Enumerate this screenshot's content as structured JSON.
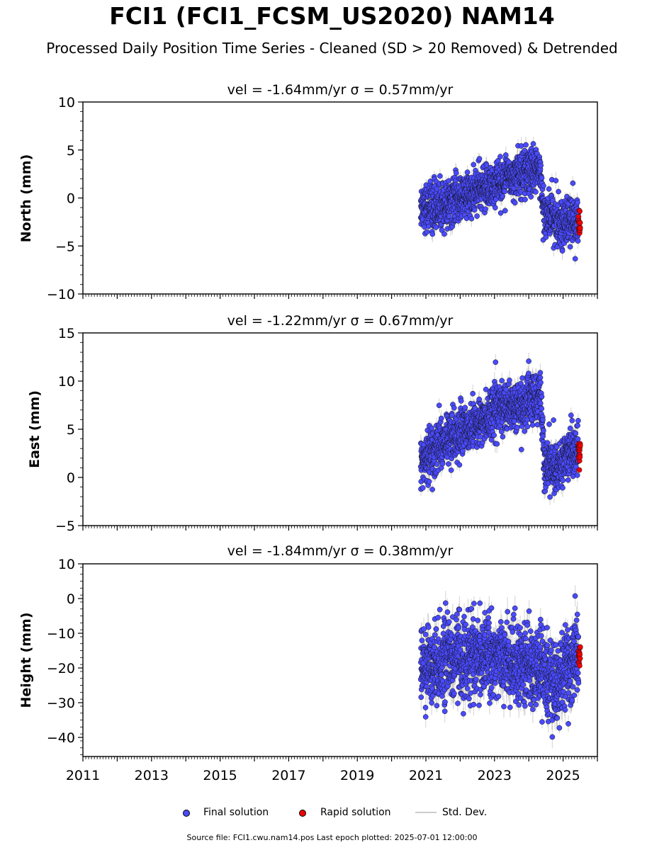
{
  "title": "FCI1 (FCI1_FCSM_US2020) NAM14",
  "subtitle": "Processed Daily Position Time Series - Cleaned (SD > 20 Removed) & Detrended",
  "legend": {
    "final": "Final solution",
    "rapid": "Rapid solution",
    "std": "Std. Dev."
  },
  "footer": "Source file: FCI1.cwu.nam14.pos  Last epoch plotted: 2025-07-01 12:00:00",
  "colors": {
    "final": "#4a4aff",
    "rapid": "#ee0000",
    "std": "#aaaaaa"
  },
  "chart_data": [
    {
      "type": "scatter",
      "title": "vel = -1.64mm/yr   σ = 0.57mm/yr",
      "ylabel": "North (mm)",
      "xlim": [
        2011,
        2026
      ],
      "ylim": [
        -10,
        10
      ],
      "yticks": [
        "−10",
        "−5",
        "0",
        "5",
        "10"
      ],
      "ytick_values": [
        -10,
        -5,
        0,
        5,
        10
      ],
      "xticks": [
        "2011",
        "2013",
        "2015",
        "2017",
        "2019",
        "2021",
        "2023",
        "2025"
      ],
      "series": [
        {
          "name": "Final solution",
          "trend": [
            [
              2020.85,
              -0.8
            ],
            [
              2021.5,
              -0.9
            ],
            [
              2022.0,
              -0.1
            ],
            [
              2022.6,
              0.8
            ],
            [
              2023.2,
              1.8
            ],
            [
              2023.7,
              2.6
            ],
            [
              2024.0,
              3.0
            ],
            [
              2024.35,
              2.4
            ],
            [
              2024.45,
              -1.6
            ],
            [
              2024.9,
              -2.4
            ],
            [
              2025.45,
              -2.6
            ]
          ],
          "spread": 1.2,
          "x_range": [
            2020.85,
            2025.45
          ]
        },
        {
          "name": "Rapid solution",
          "trend": [
            [
              2025.45,
              -2.5
            ],
            [
              2025.5,
              -2.4
            ]
          ],
          "spread": 0.9,
          "x_range": [
            2025.45,
            2025.5
          ]
        }
      ]
    },
    {
      "type": "scatter",
      "title": "vel = -1.22mm/yr   σ = 0.67mm/yr",
      "ylabel": "East (mm)",
      "xlim": [
        2011,
        2026
      ],
      "ylim": [
        -5,
        15
      ],
      "yticks": [
        "−5",
        "0",
        "5",
        "10",
        "15"
      ],
      "ytick_values": [
        -5,
        0,
        5,
        10,
        15
      ],
      "xticks": [
        "2011",
        "2013",
        "2015",
        "2017",
        "2019",
        "2021",
        "2023",
        "2025"
      ],
      "series": [
        {
          "name": "Final solution",
          "trend": [
            [
              2020.85,
              1.0
            ],
            [
              2021.3,
              3.2
            ],
            [
              2022.0,
              4.8
            ],
            [
              2022.7,
              6.0
            ],
            [
              2023.2,
              7.5
            ],
            [
              2023.8,
              7.3
            ],
            [
              2024.35,
              8.6
            ],
            [
              2024.45,
              1.8
            ],
            [
              2024.8,
              0.8
            ],
            [
              2025.1,
              2.6
            ],
            [
              2025.45,
              3.2
            ]
          ],
          "spread": 1.3,
          "x_range": [
            2020.85,
            2025.45
          ]
        },
        {
          "name": "Rapid solution",
          "trend": [
            [
              2025.45,
              2.6
            ],
            [
              2025.5,
              2.6
            ]
          ],
          "spread": 0.9,
          "x_range": [
            2025.45,
            2025.5
          ]
        }
      ]
    },
    {
      "type": "scatter",
      "title": "vel = -1.84mm/yr   σ = 0.38mm/yr",
      "ylabel": "Height (mm)",
      "xlim": [
        2011,
        2026
      ],
      "ylim": [
        -45.5,
        10
      ],
      "yticks": [
        "−40",
        "−30",
        "−20",
        "−10",
        "0",
        "10"
      ],
      "ytick_values": [
        -40,
        -30,
        -20,
        -10,
        0,
        10
      ],
      "xticks": [
        "2011",
        "2013",
        "2015",
        "2017",
        "2019",
        "2021",
        "2023",
        "2025"
      ],
      "series": [
        {
          "name": "Final solution",
          "trend": [
            [
              2020.85,
              -19
            ],
            [
              2021.5,
              -18
            ],
            [
              2022.2,
              -17
            ],
            [
              2023.0,
              -16
            ],
            [
              2023.8,
              -19
            ],
            [
              2024.4,
              -21
            ],
            [
              2024.8,
              -25
            ],
            [
              2025.45,
              -15
            ]
          ],
          "spread": 5.5,
          "x_range": [
            2020.85,
            2025.45
          ]
        },
        {
          "name": "Rapid solution",
          "trend": [
            [
              2025.45,
              -17
            ],
            [
              2025.5,
              -17
            ]
          ],
          "spread": 3.5,
          "x_range": [
            2025.45,
            2025.5
          ]
        }
      ]
    }
  ]
}
